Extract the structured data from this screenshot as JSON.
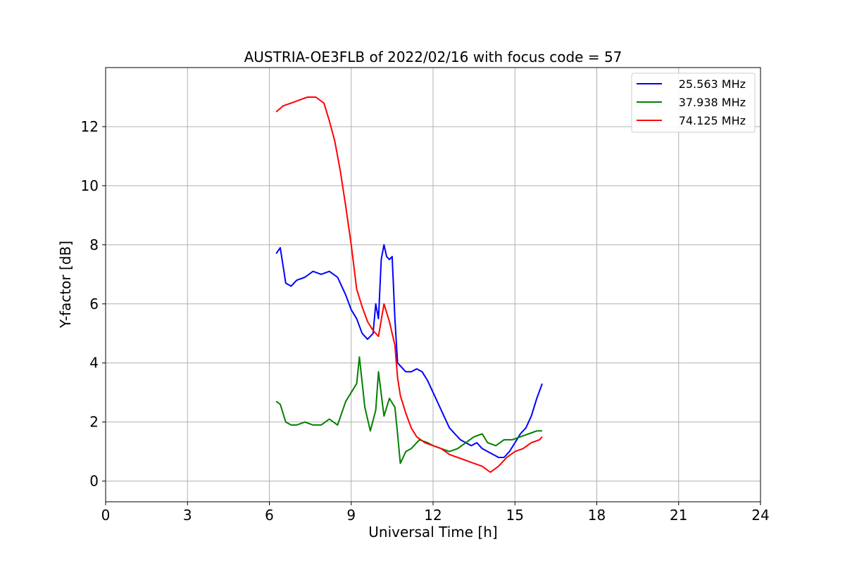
{
  "chart_data": {
    "type": "line",
    "title": "AUSTRIA-OE3FLB of 2022/02/16 with focus code = 57",
    "xlabel": "Universal Time [h]",
    "ylabel": "Y-factor [dB]",
    "xlim": [
      0,
      24
    ],
    "ylim": [
      -0.7,
      14
    ],
    "xticks": [
      0,
      3,
      6,
      9,
      12,
      15,
      18,
      21,
      24
    ],
    "yticks": [
      0,
      2,
      4,
      6,
      8,
      10,
      12
    ],
    "grid": true,
    "legend_position": "upper-right",
    "series": [
      {
        "name": "25.563 MHz",
        "color": "#0000ff",
        "x": [
          6.25,
          6.4,
          6.6,
          6.8,
          7.0,
          7.3,
          7.6,
          7.9,
          8.2,
          8.5,
          8.8,
          9.0,
          9.2,
          9.4,
          9.6,
          9.8,
          9.9,
          10.0,
          10.1,
          10.2,
          10.3,
          10.4,
          10.5,
          10.6,
          10.7,
          10.8,
          11.0,
          11.2,
          11.4,
          11.6,
          11.8,
          12.0,
          12.2,
          12.4,
          12.6,
          12.8,
          13.0,
          13.2,
          13.4,
          13.6,
          13.8,
          14.0,
          14.2,
          14.4,
          14.6,
          14.8,
          15.0,
          15.2,
          15.4,
          15.6,
          15.8,
          16.0
        ],
        "y": [
          7.7,
          7.9,
          6.7,
          6.6,
          6.8,
          6.9,
          7.1,
          7.0,
          7.1,
          6.9,
          6.3,
          5.8,
          5.5,
          5.0,
          4.8,
          5.0,
          6.0,
          5.5,
          7.5,
          8.0,
          7.6,
          7.5,
          7.6,
          5.5,
          4.0,
          3.9,
          3.7,
          3.7,
          3.8,
          3.7,
          3.4,
          3.0,
          2.6,
          2.2,
          1.8,
          1.6,
          1.4,
          1.3,
          1.2,
          1.3,
          1.1,
          1.0,
          0.9,
          0.8,
          0.8,
          1.0,
          1.3,
          1.6,
          1.8,
          2.2,
          2.8,
          3.3
        ]
      },
      {
        "name": "37.938 MHz",
        "color": "#008000",
        "x": [
          6.25,
          6.4,
          6.6,
          6.8,
          7.0,
          7.3,
          7.6,
          7.9,
          8.2,
          8.5,
          8.8,
          9.0,
          9.2,
          9.3,
          9.5,
          9.7,
          9.9,
          10.0,
          10.2,
          10.4,
          10.6,
          10.7,
          10.8,
          11.0,
          11.2,
          11.5,
          11.8,
          12.0,
          12.3,
          12.6,
          12.9,
          13.2,
          13.5,
          13.8,
          14.0,
          14.3,
          14.6,
          14.9,
          15.2,
          15.5,
          15.8,
          16.0
        ],
        "y": [
          2.7,
          2.6,
          2.0,
          1.9,
          1.9,
          2.0,
          1.9,
          1.9,
          2.1,
          1.9,
          2.7,
          3.0,
          3.3,
          4.2,
          2.5,
          1.7,
          2.4,
          3.7,
          2.2,
          2.8,
          2.5,
          1.6,
          0.6,
          1.0,
          1.1,
          1.4,
          1.3,
          1.2,
          1.1,
          1.0,
          1.1,
          1.3,
          1.5,
          1.6,
          1.3,
          1.2,
          1.4,
          1.4,
          1.5,
          1.6,
          1.7,
          1.7
        ]
      },
      {
        "name": "74.125 MHz",
        "color": "#ff0000",
        "x": [
          6.25,
          6.5,
          6.8,
          7.1,
          7.4,
          7.7,
          8.0,
          8.2,
          8.4,
          8.6,
          8.8,
          9.0,
          9.2,
          9.4,
          9.6,
          9.8,
          10.0,
          10.2,
          10.4,
          10.6,
          10.7,
          10.8,
          11.0,
          11.2,
          11.4,
          11.7,
          12.0,
          12.3,
          12.6,
          12.9,
          13.2,
          13.5,
          13.8,
          14.1,
          14.4,
          14.7,
          15.0,
          15.3,
          15.6,
          15.9,
          16.0
        ],
        "y": [
          12.5,
          12.7,
          12.8,
          12.9,
          13.0,
          13.0,
          12.8,
          12.2,
          11.5,
          10.5,
          9.3,
          8.0,
          6.5,
          5.9,
          5.4,
          5.1,
          4.9,
          6.0,
          5.4,
          4.6,
          3.5,
          2.9,
          2.3,
          1.8,
          1.5,
          1.3,
          1.2,
          1.1,
          0.9,
          0.8,
          0.7,
          0.6,
          0.5,
          0.3,
          0.5,
          0.8,
          1.0,
          1.1,
          1.3,
          1.4,
          1.5
        ]
      }
    ]
  }
}
